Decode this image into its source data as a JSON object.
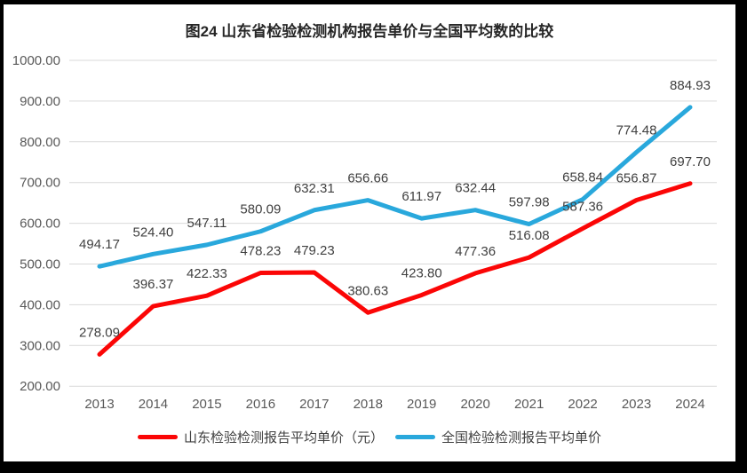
{
  "frame": {
    "border_color": "#000000",
    "canvas_color": "#ffffff"
  },
  "colors": {
    "gridline": "#d9d9d9",
    "axis_text": "#595959",
    "value_text": "#404040",
    "title_text": "#262626"
  },
  "chart_data": {
    "type": "line",
    "title": "图24  山东省检验检测机构报告单价与全国平均数的比较",
    "categories": [
      "2013",
      "2014",
      "2015",
      "2016",
      "2017",
      "2018",
      "2019",
      "2020",
      "2021",
      "2022",
      "2023",
      "2024"
    ],
    "series": [
      {
        "name": "山东检验检测报告平均单价（元）",
        "color": "#fb0606",
        "values": [
          278.09,
          396.37,
          422.33,
          478.23,
          479.23,
          380.63,
          423.8,
          477.36,
          516.08,
          587.36,
          656.87,
          697.7
        ]
      },
      {
        "name": "全国检验检测报告平均单价",
        "color": "#29a8dc",
        "values": [
          494.17,
          524.4,
          547.11,
          580.09,
          632.31,
          656.66,
          611.97,
          632.44,
          597.98,
          658.84,
          774.48,
          884.93
        ]
      }
    ],
    "xlabel": "",
    "ylabel": "",
    "ylim": [
      200,
      1000
    ],
    "ytick_step": 100,
    "ytick_labels": [
      "200.00",
      "300.00",
      "400.00",
      "500.00",
      "600.00",
      "700.00",
      "800.00",
      "900.00",
      "1000.00"
    ],
    "grid": "horizontal",
    "value_labels": "above",
    "value_label_decimals": 2,
    "legend_position": "bottom"
  }
}
